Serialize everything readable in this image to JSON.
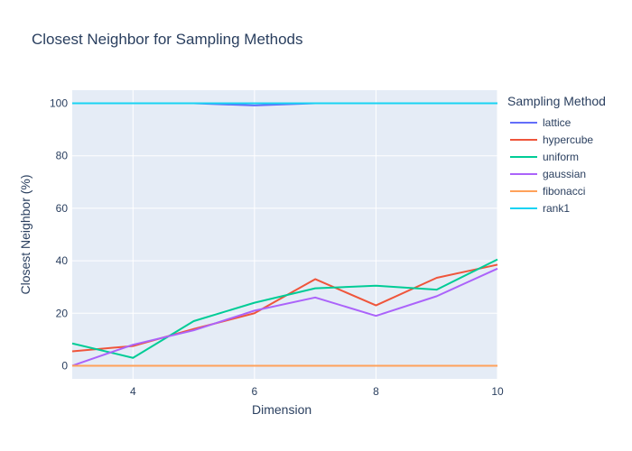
{
  "chart_data": {
    "type": "line",
    "title": "Closest Neighbor for Sampling Methods",
    "xlabel": "Dimension",
    "ylabel": "Closest Neighbor (%)",
    "xlim": [
      3,
      10
    ],
    "ylim": [
      -5,
      105
    ],
    "x_ticks": [
      4,
      6,
      8,
      10
    ],
    "y_ticks": [
      0,
      20,
      40,
      60,
      80,
      100
    ],
    "grid": true,
    "legend_title": "Sampling Method",
    "legend_position": "right",
    "x": [
      3,
      4,
      5,
      6,
      7,
      8,
      9,
      10
    ],
    "series": [
      {
        "name": "lattice",
        "color": "#636efa",
        "values": [
          100,
          100,
          100,
          99.2,
          100,
          100,
          100,
          100
        ]
      },
      {
        "name": "hypercube",
        "color": "#ef553b",
        "values": [
          5.5,
          7.5,
          14,
          20,
          33,
          23,
          33.5,
          38.5
        ]
      },
      {
        "name": "uniform",
        "color": "#00cc96",
        "values": [
          8.5,
          3,
          17,
          24,
          29.5,
          30.5,
          29,
          40.5
        ]
      },
      {
        "name": "gaussian",
        "color": "#ab63fa",
        "values": [
          0,
          8,
          13.5,
          21,
          26,
          19,
          26.5,
          37
        ]
      },
      {
        "name": "fibonacci",
        "color": "#ffa15a",
        "values": [
          0,
          0,
          0,
          0,
          0,
          0,
          0,
          0
        ]
      },
      {
        "name": "rank1",
        "color": "#19d3f3",
        "values": [
          100,
          100,
          100,
          100,
          100,
          100,
          100,
          100
        ]
      }
    ]
  }
}
